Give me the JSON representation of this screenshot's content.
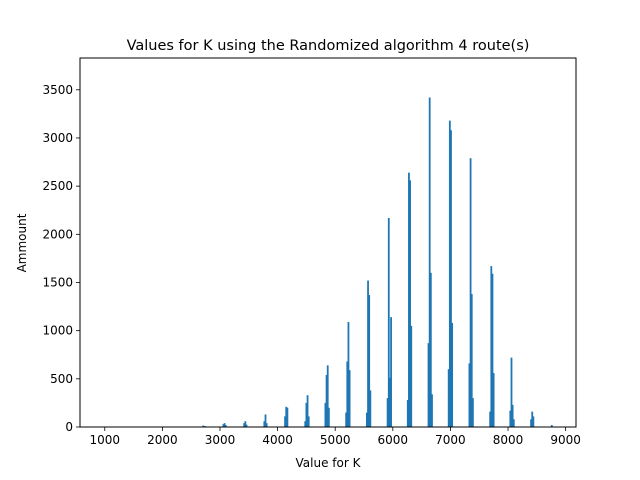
{
  "chart_data": {
    "type": "bar",
    "title": "Values for K using the Randomized algorithm 4 route(s)",
    "xlabel": "Value for K",
    "ylabel": "Ammount",
    "xlim": [
      570,
      9180
    ],
    "ylim": [
      0,
      3830
    ],
    "xticks": [
      1000,
      2000,
      3000,
      4000,
      5000,
      6000,
      7000,
      8000,
      9000
    ],
    "yticks": [
      0,
      500,
      1000,
      1500,
      2000,
      2500,
      3000,
      3500
    ],
    "grid": false,
    "bar_color": "#1f77b4",
    "series": [
      {
        "x": [
          2710,
          2740,
          3060,
          3080,
          3100,
          3420,
          3440,
          3460,
          3770,
          3790,
          3810,
          4130,
          4150,
          4170,
          4480,
          4500,
          4520,
          4540,
          4830,
          4850,
          4870,
          4890,
          5190,
          5210,
          5230,
          5250,
          5550,
          5570,
          5590,
          5610,
          5910,
          5930,
          5950,
          5970,
          6260,
          6280,
          6300,
          6320,
          6620,
          6640,
          6660,
          6680,
          6970,
          6990,
          7010,
          7030,
          7330,
          7350,
          7370,
          7390,
          7690,
          7710,
          7730,
          7750,
          8040,
          8060,
          8080,
          8100,
          8400,
          8420,
          8440,
          8760
        ],
        "values": [
          15,
          10,
          30,
          40,
          20,
          40,
          60,
          25,
          60,
          130,
          40,
          110,
          210,
          200,
          60,
          250,
          330,
          110,
          250,
          540,
          640,
          200,
          150,
          680,
          1090,
          590,
          150,
          1520,
          1370,
          380,
          300,
          2170,
          510,
          1140,
          280,
          2640,
          2560,
          1050,
          870,
          3420,
          1600,
          340,
          600,
          3180,
          3080,
          1080,
          660,
          2790,
          1380,
          300,
          160,
          1670,
          1590,
          560,
          170,
          720,
          230,
          80,
          80,
          160,
          110,
          20
        ]
      }
    ]
  }
}
